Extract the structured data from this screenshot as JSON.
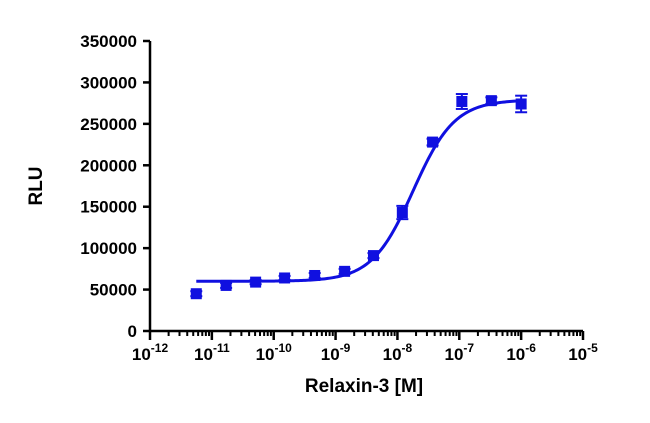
{
  "chart_data": {
    "type": "scatter",
    "title": "",
    "xlabel": "Relaxin-3 [M]",
    "ylabel": "RLU",
    "x_scale": "log",
    "xlim": [
      1e-12,
      1e-05
    ],
    "ylim": [
      0,
      350000
    ],
    "grid": false,
    "legend": "none",
    "y_ticks": [
      0,
      50000,
      100000,
      150000,
      200000,
      250000,
      300000,
      350000
    ],
    "y_tick_labels": [
      "0",
      "50000",
      "100000",
      "150000",
      "200000",
      "250000",
      "300000",
      "350000"
    ],
    "x_tick_exponents": [
      "-12",
      "-11",
      "-10",
      "-9",
      "-8",
      "-7",
      "-6",
      "-5"
    ],
    "series": [
      {
        "color": "#1010e0",
        "marker": "square",
        "points": [
          {
            "x": 5.6e-12,
            "y": 45000,
            "err": 3000
          },
          {
            "x": 1.7e-11,
            "y": 55000,
            "err": 3000
          },
          {
            "x": 5.1e-11,
            "y": 59000,
            "err": 2500
          },
          {
            "x": 1.5e-10,
            "y": 64000,
            "err": 2500
          },
          {
            "x": 4.6e-10,
            "y": 67000,
            "err": 3000
          },
          {
            "x": 1.4e-09,
            "y": 72000,
            "err": 3000
          },
          {
            "x": 4.1e-09,
            "y": 91000,
            "err": 3000
          },
          {
            "x": 1.2e-08,
            "y": 143000,
            "err": 8000
          },
          {
            "x": 3.7e-08,
            "y": 228000,
            "err": 4000
          },
          {
            "x": 1.1e-07,
            "y": 277000,
            "err": 9000
          },
          {
            "x": 3.3e-07,
            "y": 278000,
            "err": 4000
          },
          {
            "x": 1e-06,
            "y": 274000,
            "err": 10000
          }
        ]
      }
    ],
    "fit_curve": {
      "model": "four-parameter logistic",
      "bottom": 60000,
      "top": 279000,
      "ec50": 1.8e-08,
      "hill": 1.3,
      "x_range": [
        5.6e-12,
        1e-06
      ]
    }
  }
}
